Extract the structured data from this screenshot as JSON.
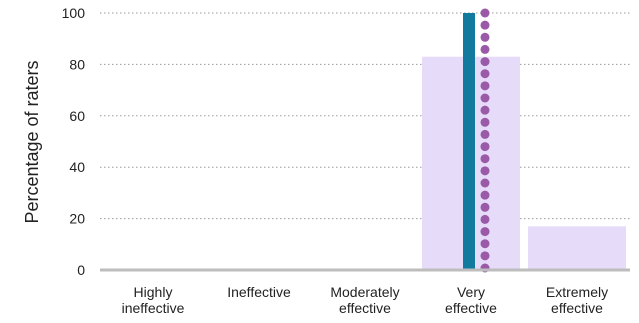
{
  "chart_data": {
    "type": "bar",
    "categories": [
      [
        "Highly",
        "ineffective"
      ],
      [
        "Ineffective"
      ],
      [
        "Moderately",
        "effective"
      ],
      [
        "Very",
        "effective"
      ],
      [
        "Extremely",
        "effective"
      ]
    ],
    "series": [
      {
        "kind": "bar",
        "color": "#e6dcfa",
        "values": [
          0,
          0,
          0,
          83,
          17
        ]
      },
      {
        "kind": "narrow-bar",
        "color": "#127a9e",
        "values": [
          0,
          0,
          0,
          100,
          0
        ]
      },
      {
        "kind": "dots",
        "color": "#9a5aa8",
        "values": [
          0,
          0,
          0,
          100,
          0
        ]
      }
    ],
    "yticks": [
      0,
      20,
      40,
      60,
      80,
      100
    ],
    "ylim": [
      0,
      100
    ],
    "title": "",
    "xlabel": "",
    "ylabel": "Percentage of raters",
    "grid": "horizontal-dotted"
  }
}
